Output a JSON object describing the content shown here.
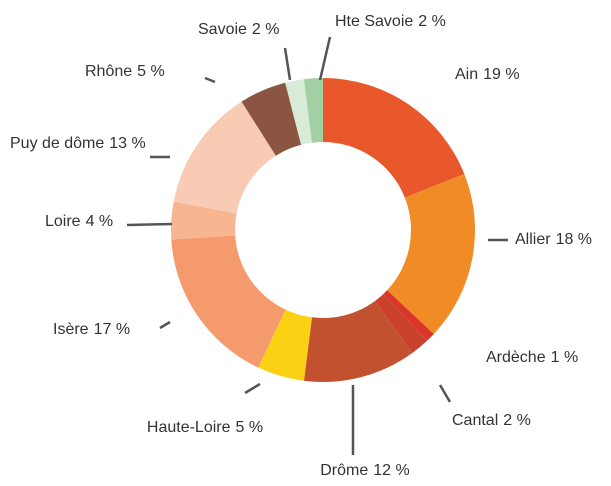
{
  "chart_data": {
    "type": "donut",
    "categories": [
      "Ain",
      "Allier",
      "Ardèche",
      "Cantal",
      "Drôme",
      "Haute-Loire",
      "Isère",
      "Loire",
      "Puy de dôme",
      "Rhône",
      "Savoie",
      "Hte Savoie"
    ],
    "values": [
      19,
      18,
      1,
      2,
      12,
      5,
      17,
      4,
      13,
      5,
      2,
      2
    ],
    "value_labels": [
      "19 %",
      "18 %",
      "1 %",
      "2 %",
      "12 %",
      "5 %",
      "17 %",
      "4 %",
      "13 %",
      "5 %",
      "2 %",
      "2 %"
    ],
    "colors": [
      "#e9582b",
      "#f08b25",
      "#d9352a",
      "#c9412b",
      "#c2512f",
      "#fbd114",
      "#f49a6c",
      "#f7b592",
      "#f9cbb4",
      "#8b5541",
      "#d7ebd6",
      "#a3cfa4"
    ]
  }
}
